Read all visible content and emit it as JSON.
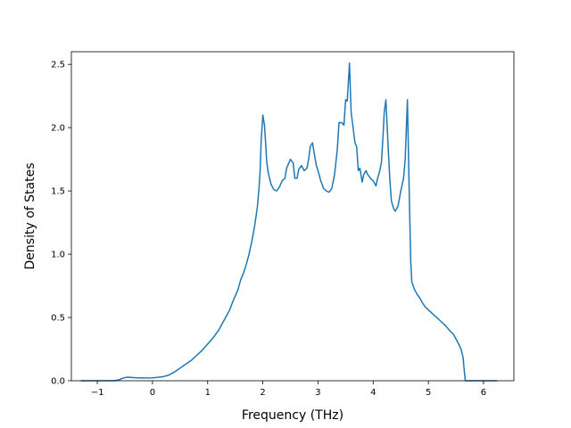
{
  "chart_data": {
    "type": "line",
    "title": "",
    "xlabel": "Frequency (THz)",
    "ylabel": "Density of States",
    "xlim": [
      -1.47,
      6.55
    ],
    "ylim": [
      0,
      2.6
    ],
    "xticks": [
      -1,
      0,
      1,
      2,
      3,
      4,
      5,
      6
    ],
    "yticks": [
      0.0,
      0.5,
      1.0,
      1.5,
      2.0,
      2.5
    ],
    "xtick_labels": [
      "−1",
      "0",
      "1",
      "2",
      "3",
      "4",
      "5",
      "6"
    ],
    "ytick_labels": [
      "0.0",
      "0.5",
      "1.0",
      "1.5",
      "2.0",
      "2.5"
    ],
    "grid": false,
    "line_color": "#1f77b4",
    "series": [
      {
        "points": [
          [
            -1.3,
            0.0
          ],
          [
            -0.9,
            0.0
          ],
          [
            -0.7,
            0.0
          ],
          [
            -0.6,
            0.008
          ],
          [
            -0.55,
            0.018
          ],
          [
            -0.5,
            0.025
          ],
          [
            -0.45,
            0.028
          ],
          [
            -0.35,
            0.025
          ],
          [
            -0.2,
            0.022
          ],
          [
            0.0,
            0.023
          ],
          [
            0.1,
            0.027
          ],
          [
            0.2,
            0.033
          ],
          [
            0.3,
            0.045
          ],
          [
            0.4,
            0.07
          ],
          [
            0.5,
            0.1
          ],
          [
            0.6,
            0.13
          ],
          [
            0.7,
            0.16
          ],
          [
            0.8,
            0.2
          ],
          [
            0.9,
            0.24
          ],
          [
            1.0,
            0.29
          ],
          [
            1.1,
            0.34
          ],
          [
            1.2,
            0.4
          ],
          [
            1.3,
            0.48
          ],
          [
            1.4,
            0.56
          ],
          [
            1.45,
            0.62
          ],
          [
            1.5,
            0.67
          ],
          [
            1.55,
            0.72
          ],
          [
            1.6,
            0.8
          ],
          [
            1.65,
            0.85
          ],
          [
            1.7,
            0.92
          ],
          [
            1.75,
            1.0
          ],
          [
            1.8,
            1.1
          ],
          [
            1.85,
            1.22
          ],
          [
            1.9,
            1.37
          ],
          [
            1.93,
            1.52
          ],
          [
            1.95,
            1.65
          ],
          [
            1.97,
            1.9
          ],
          [
            2.0,
            2.1
          ],
          [
            2.03,
            2.02
          ],
          [
            2.05,
            1.88
          ],
          [
            2.07,
            1.73
          ],
          [
            2.1,
            1.64
          ],
          [
            2.15,
            1.55
          ],
          [
            2.2,
            1.51
          ],
          [
            2.25,
            1.5
          ],
          [
            2.3,
            1.53
          ],
          [
            2.35,
            1.58
          ],
          [
            2.4,
            1.6
          ],
          [
            2.43,
            1.68
          ],
          [
            2.47,
            1.72
          ],
          [
            2.5,
            1.75
          ],
          [
            2.55,
            1.72
          ],
          [
            2.58,
            1.6
          ],
          [
            2.62,
            1.6
          ],
          [
            2.65,
            1.67
          ],
          [
            2.7,
            1.7
          ],
          [
            2.75,
            1.66
          ],
          [
            2.8,
            1.68
          ],
          [
            2.83,
            1.75
          ],
          [
            2.86,
            1.85
          ],
          [
            2.9,
            1.88
          ],
          [
            2.93,
            1.8
          ],
          [
            2.97,
            1.7
          ],
          [
            3.0,
            1.66
          ],
          [
            3.05,
            1.58
          ],
          [
            3.1,
            1.52
          ],
          [
            3.15,
            1.5
          ],
          [
            3.2,
            1.49
          ],
          [
            3.25,
            1.52
          ],
          [
            3.3,
            1.63
          ],
          [
            3.35,
            1.83
          ],
          [
            3.38,
            2.04
          ],
          [
            3.43,
            2.04
          ],
          [
            3.47,
            2.02
          ],
          [
            3.5,
            2.22
          ],
          [
            3.53,
            2.21
          ],
          [
            3.57,
            2.51
          ],
          [
            3.6,
            2.12
          ],
          [
            3.63,
            2.02
          ],
          [
            3.67,
            1.88
          ],
          [
            3.7,
            1.85
          ],
          [
            3.73,
            1.66
          ],
          [
            3.76,
            1.68
          ],
          [
            3.8,
            1.57
          ],
          [
            3.83,
            1.63
          ],
          [
            3.87,
            1.66
          ],
          [
            3.9,
            1.63
          ],
          [
            3.95,
            1.6
          ],
          [
            4.0,
            1.58
          ],
          [
            4.05,
            1.54
          ],
          [
            4.08,
            1.6
          ],
          [
            4.12,
            1.66
          ],
          [
            4.15,
            1.73
          ],
          [
            4.18,
            1.95
          ],
          [
            4.2,
            2.12
          ],
          [
            4.23,
            2.22
          ],
          [
            4.26,
            1.95
          ],
          [
            4.3,
            1.6
          ],
          [
            4.33,
            1.42
          ],
          [
            4.37,
            1.36
          ],
          [
            4.4,
            1.34
          ],
          [
            4.45,
            1.38
          ],
          [
            4.5,
            1.5
          ],
          [
            4.55,
            1.6
          ],
          [
            4.58,
            1.75
          ],
          [
            4.62,
            2.22
          ],
          [
            4.65,
            1.55
          ],
          [
            4.68,
            0.95
          ],
          [
            4.7,
            0.78
          ],
          [
            4.75,
            0.72
          ],
          [
            4.8,
            0.68
          ],
          [
            4.85,
            0.65
          ],
          [
            4.9,
            0.61
          ],
          [
            4.95,
            0.58
          ],
          [
            5.0,
            0.56
          ],
          [
            5.1,
            0.52
          ],
          [
            5.2,
            0.48
          ],
          [
            5.3,
            0.44
          ],
          [
            5.4,
            0.39
          ],
          [
            5.45,
            0.37
          ],
          [
            5.5,
            0.33
          ],
          [
            5.55,
            0.29
          ],
          [
            5.6,
            0.24
          ],
          [
            5.63,
            0.18
          ],
          [
            5.65,
            0.08
          ],
          [
            5.67,
            0.0
          ],
          [
            5.8,
            0.0
          ],
          [
            6.0,
            0.0
          ],
          [
            6.25,
            0.0
          ]
        ]
      }
    ]
  }
}
